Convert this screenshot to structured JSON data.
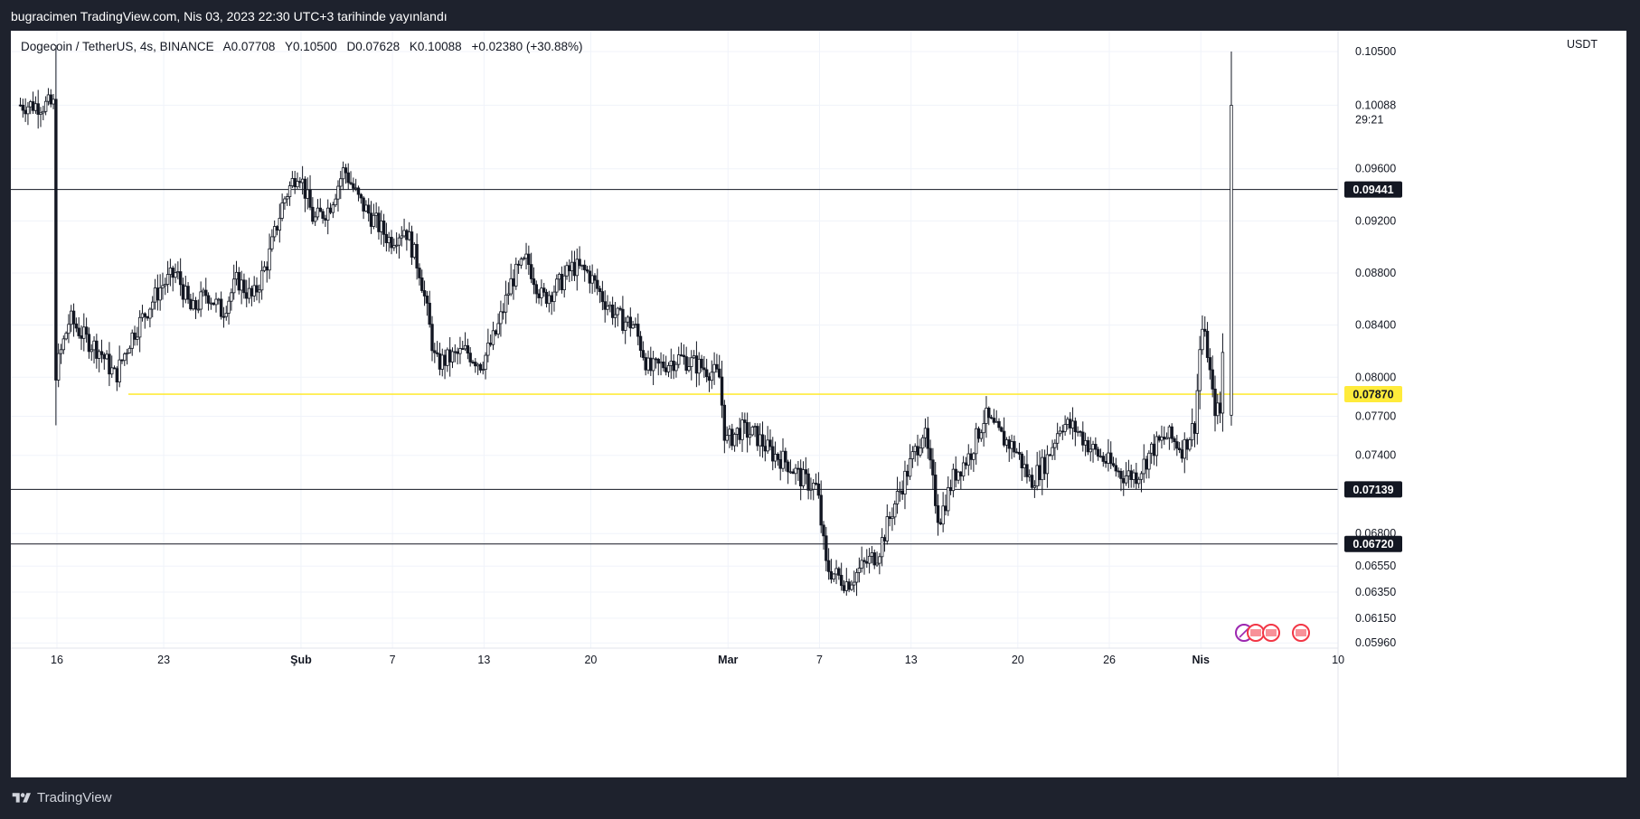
{
  "header": {
    "published": "bugracimen TradingView.com, Nis 03, 2023 22:30 UTC+3 tarihinde yayınlandı"
  },
  "legend": {
    "symbol": "Dogecoin / TetherUS, 4s, BINANCE",
    "open": "A0.07708",
    "high": "Y0.10500",
    "low": "D0.07628",
    "close": "K0.10088",
    "change": "+0.02380 (+30.88%)"
  },
  "footer": {
    "brand": "TradingView"
  },
  "chart_data": {
    "type": "candlestick",
    "currency": "USDT",
    "ylim": [
      0.0592,
      0.1066
    ],
    "y_ticks": [
      "0.10500",
      "0.10088",
      "0.09600",
      "0.09200",
      "0.08800",
      "0.08400",
      "0.08000",
      "0.07700",
      "0.07400",
      "0.06800",
      "0.06550",
      "0.06350",
      "0.06150",
      "0.05960"
    ],
    "countdown": "29:21",
    "x_ticks": [
      {
        "label": "16",
        "d": 0
      },
      {
        "label": "23",
        "d": 7
      },
      {
        "label": "Şub",
        "d": 16,
        "bold": true
      },
      {
        "label": "7",
        "d": 22
      },
      {
        "label": "13",
        "d": 28
      },
      {
        "label": "20",
        "d": 35
      },
      {
        "label": "Mar",
        "d": 44,
        "bold": true
      },
      {
        "label": "7",
        "d": 50
      },
      {
        "label": "13",
        "d": 56
      },
      {
        "label": "20",
        "d": 63
      },
      {
        "label": "26",
        "d": 69
      },
      {
        "label": "Nis",
        "d": 75,
        "bold": true
      },
      {
        "label": "10",
        "d": 84
      }
    ],
    "levels": [
      {
        "value": 0.09441,
        "label": "0.09441",
        "color": "#131722"
      },
      {
        "value": 0.0787,
        "label": "0.07870",
        "color": "#ffeb3b"
      },
      {
        "value": 0.07139,
        "label": "0.07139",
        "color": "#131722"
      },
      {
        "value": 0.0672,
        "label": "0.06720",
        "color": "#131722"
      }
    ],
    "anchors": [
      [
        0,
        0.08
      ],
      [
        1,
        0.0845
      ],
      [
        2,
        0.083
      ],
      [
        3,
        0.082
      ],
      [
        4,
        0.08
      ],
      [
        5,
        0.083
      ],
      [
        6,
        0.085
      ],
      [
        7,
        0.087
      ],
      [
        8,
        0.088
      ],
      [
        9,
        0.085
      ],
      [
        10,
        0.0865
      ],
      [
        11,
        0.085
      ],
      [
        12,
        0.0875
      ],
      [
        13,
        0.086
      ],
      [
        14,
        0.089
      ],
      [
        15,
        0.0935
      ],
      [
        16,
        0.096
      ],
      [
        17,
        0.092
      ],
      [
        18,
        0.093
      ],
      [
        19,
        0.096
      ],
      [
        20,
        0.0935
      ],
      [
        21,
        0.092
      ],
      [
        22,
        0.0905
      ],
      [
        23,
        0.0915
      ],
      [
        24,
        0.088
      ],
      [
        25,
        0.081
      ],
      [
        26,
        0.0815
      ],
      [
        27,
        0.082
      ],
      [
        28,
        0.081
      ],
      [
        29,
        0.0835
      ],
      [
        30,
        0.0875
      ],
      [
        31,
        0.089
      ],
      [
        32,
        0.086
      ],
      [
        33,
        0.087
      ],
      [
        34,
        0.0885
      ],
      [
        35,
        0.088
      ],
      [
        36,
        0.086
      ],
      [
        37,
        0.0845
      ],
      [
        38,
        0.084
      ],
      [
        39,
        0.0805
      ],
      [
        40,
        0.081
      ],
      [
        41,
        0.0815
      ],
      [
        42,
        0.081
      ],
      [
        43,
        0.0805
      ],
      [
        43.6,
        0.08
      ],
      [
        44,
        0.075
      ],
      [
        45,
        0.076
      ],
      [
        46,
        0.0755
      ],
      [
        47,
        0.0742
      ],
      [
        48,
        0.0735
      ],
      [
        49,
        0.0722
      ],
      [
        50,
        0.0715
      ],
      [
        50.6,
        0.0655
      ],
      [
        51,
        0.065
      ],
      [
        52,
        0.0642
      ],
      [
        53,
        0.0655
      ],
      [
        54,
        0.0665
      ],
      [
        55,
        0.07
      ],
      [
        56,
        0.073
      ],
      [
        57,
        0.076
      ],
      [
        58,
        0.069
      ],
      [
        59,
        0.0725
      ],
      [
        60,
        0.074
      ],
      [
        61,
        0.077
      ],
      [
        62,
        0.0755
      ],
      [
        63,
        0.0745
      ],
      [
        64,
        0.072
      ],
      [
        65,
        0.0735
      ],
      [
        66,
        0.0765
      ],
      [
        67,
        0.076
      ],
      [
        68,
        0.0745
      ],
      [
        69,
        0.0735
      ],
      [
        70,
        0.0725
      ],
      [
        71,
        0.0725
      ],
      [
        72,
        0.0745
      ],
      [
        73,
        0.0755
      ],
      [
        74,
        0.0745
      ],
      [
        74.8,
        0.0765
      ],
      [
        75.2,
        0.084
      ],
      [
        75.6,
        0.082
      ],
      [
        76,
        0.0778
      ],
      [
        76.5,
        0.0771
      ],
      [
        77,
        0.1009
      ]
    ]
  }
}
